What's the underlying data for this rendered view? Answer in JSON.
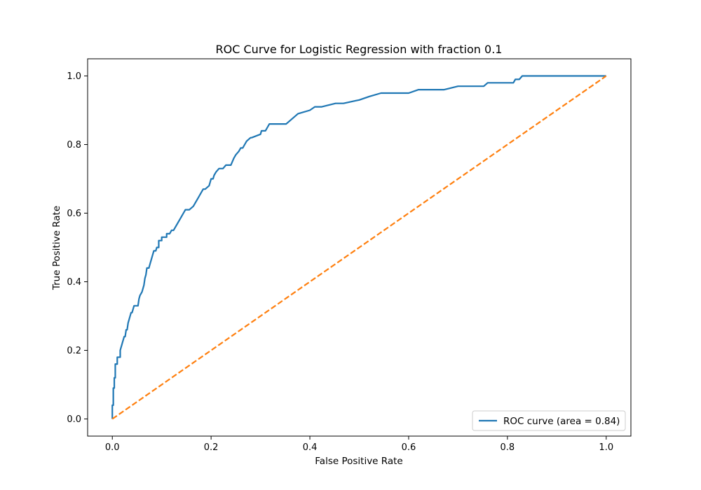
{
  "chart_data": {
    "type": "line",
    "title": "ROC Curve for Logistic Regression with fraction 0.1",
    "xlabel": "False Positive Rate",
    "ylabel": "True Positive Rate",
    "xlim": [
      -0.05,
      1.05
    ],
    "ylim": [
      -0.05,
      1.05
    ],
    "xticks": [
      0.0,
      0.2,
      0.4,
      0.6,
      0.8,
      1.0
    ],
    "yticks": [
      0.0,
      0.2,
      0.4,
      0.6,
      0.8,
      1.0
    ],
    "xtick_labels": [
      "0.0",
      "0.2",
      "0.4",
      "0.6",
      "0.8",
      "1.0"
    ],
    "ytick_labels": [
      "0.0",
      "0.2",
      "0.4",
      "0.6",
      "0.8",
      "1.0"
    ],
    "grid": false,
    "legend_position": "lower-right",
    "series": [
      {
        "name": "ROC curve (area = 0.84)",
        "color": "#1f77b4",
        "style": "solid",
        "x": [
          0.0,
          0.0,
          0.002,
          0.002,
          0.004,
          0.004,
          0.006,
          0.006,
          0.01,
          0.01,
          0.016,
          0.016,
          0.018,
          0.02,
          0.022,
          0.024,
          0.026,
          0.028,
          0.03,
          0.032,
          0.034,
          0.036,
          0.038,
          0.04,
          0.044,
          0.046,
          0.05,
          0.052,
          0.054,
          0.056,
          0.06,
          0.064,
          0.066,
          0.068,
          0.07,
          0.074,
          0.076,
          0.078,
          0.082,
          0.084,
          0.088,
          0.09,
          0.094,
          0.094,
          0.1,
          0.1,
          0.11,
          0.11,
          0.116,
          0.12,
          0.124,
          0.128,
          0.132,
          0.136,
          0.14,
          0.144,
          0.148,
          0.152,
          0.156,
          0.164,
          0.168,
          0.172,
          0.176,
          0.18,
          0.184,
          0.188,
          0.196,
          0.2,
          0.204,
          0.206,
          0.21,
          0.216,
          0.22,
          0.224,
          0.23,
          0.24,
          0.246,
          0.25,
          0.256,
          0.26,
          0.264,
          0.268,
          0.272,
          0.28,
          0.282,
          0.3,
          0.302,
          0.31,
          0.314,
          0.318,
          0.322,
          0.34,
          0.352,
          0.36,
          0.368,
          0.376,
          0.4,
          0.41,
          0.424,
          0.452,
          0.468,
          0.5,
          0.52,
          0.544,
          0.6,
          0.62,
          0.64,
          0.672,
          0.7,
          0.72,
          0.752,
          0.76,
          0.812,
          0.816,
          0.824,
          0.83,
          0.86,
          0.9,
          1.0
        ],
        "y": [
          0.0,
          0.04,
          0.04,
          0.09,
          0.09,
          0.12,
          0.12,
          0.16,
          0.16,
          0.18,
          0.18,
          0.2,
          0.21,
          0.22,
          0.23,
          0.24,
          0.24,
          0.26,
          0.26,
          0.28,
          0.29,
          0.3,
          0.31,
          0.31,
          0.33,
          0.33,
          0.33,
          0.33,
          0.35,
          0.36,
          0.37,
          0.39,
          0.41,
          0.42,
          0.44,
          0.44,
          0.45,
          0.46,
          0.48,
          0.49,
          0.49,
          0.5,
          0.5,
          0.52,
          0.52,
          0.53,
          0.53,
          0.54,
          0.54,
          0.55,
          0.55,
          0.56,
          0.57,
          0.58,
          0.59,
          0.6,
          0.61,
          0.61,
          0.61,
          0.62,
          0.63,
          0.64,
          0.65,
          0.66,
          0.67,
          0.67,
          0.68,
          0.7,
          0.7,
          0.71,
          0.72,
          0.73,
          0.73,
          0.73,
          0.74,
          0.74,
          0.76,
          0.77,
          0.78,
          0.79,
          0.79,
          0.8,
          0.81,
          0.82,
          0.82,
          0.83,
          0.84,
          0.84,
          0.85,
          0.86,
          0.86,
          0.86,
          0.86,
          0.87,
          0.88,
          0.89,
          0.9,
          0.91,
          0.91,
          0.92,
          0.92,
          0.93,
          0.94,
          0.95,
          0.95,
          0.96,
          0.96,
          0.96,
          0.97,
          0.97,
          0.97,
          0.98,
          0.98,
          0.99,
          0.99,
          1.0,
          1.0,
          1.0,
          1.0
        ]
      },
      {
        "name": "",
        "color": "#ff7f0e",
        "style": "dashed",
        "x": [
          0.0,
          1.0
        ],
        "y": [
          0.0,
          1.0
        ]
      }
    ]
  }
}
